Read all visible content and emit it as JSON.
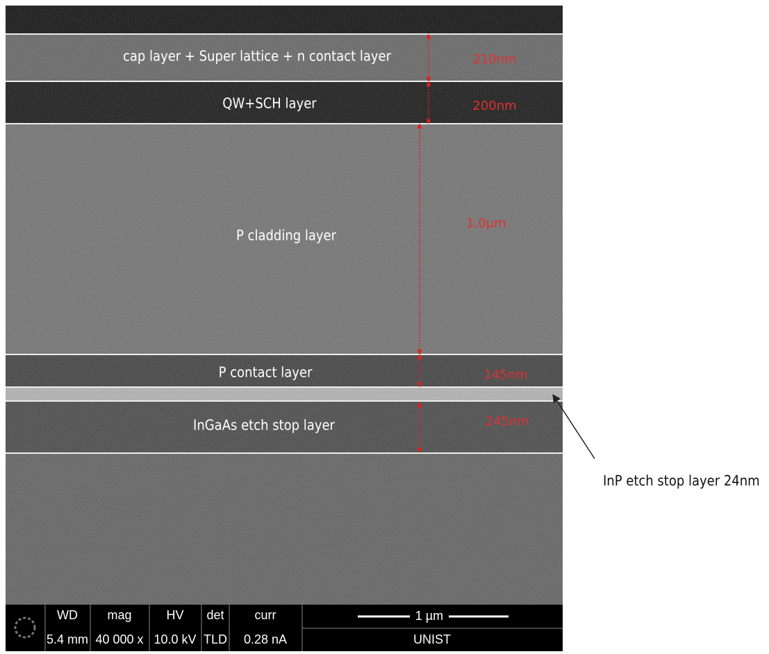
{
  "layers": [
    {
      "label": "cap layer + Super lattice + n contact layer",
      "thickness": "210nm"
    },
    {
      "label": "QW+SCH layer",
      "thickness": "200nm"
    },
    {
      "label": "P cladding layer",
      "thickness": "1.0μm"
    },
    {
      "label": "P contact layer",
      "thickness": "145nm"
    },
    {
      "label": "InGaAs etch stop layer",
      "thickness": "245nm"
    }
  ],
  "side_note": "InP etch stop layer 24nm",
  "info_bar": {
    "fields": [
      {
        "name": "WD",
        "value": "5.4 mm"
      },
      {
        "name": "mag",
        "value": "40 000 x"
      },
      {
        "name": "HV",
        "value": "10.0 kV"
      },
      {
        "name": "det",
        "value": "TLD"
      },
      {
        "name": "curr",
        "value": "0.28 nA"
      }
    ],
    "scale_bar": "1 µm",
    "institution": "UNIST"
  }
}
